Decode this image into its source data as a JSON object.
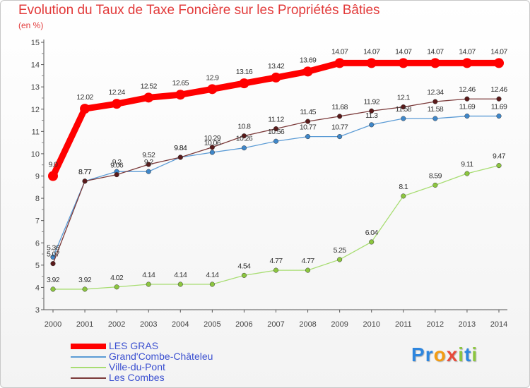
{
  "title": "Evolution du Taux de Taxe Foncière sur les Propriétés Bâties",
  "unit": "(en %)",
  "logo": {
    "letters": [
      "P",
      "r",
      "o",
      "x",
      "i",
      "t",
      "i"
    ],
    "colors": [
      "#2e86de",
      "#2e86de",
      "#f39c12",
      "#e74c3c",
      "#8cc63f",
      "#2e86de",
      "#8cc63f"
    ]
  },
  "chart_data": {
    "type": "line",
    "title": "Evolution du Taux de Taxe Foncière sur les Propriétés Bâties",
    "ylabel": "(en %)",
    "xlabel": "",
    "ylim": [
      3,
      15
    ],
    "yticks": [
      3,
      4,
      5,
      6,
      7,
      8,
      9,
      10,
      11,
      12,
      13,
      14,
      15
    ],
    "grid": false,
    "legend": "bottom-left",
    "x": [
      2000,
      2001,
      2002,
      2003,
      2004,
      2005,
      2006,
      2007,
      2008,
      2009,
      2010,
      2011,
      2012,
      2013,
      2014
    ],
    "series": [
      {
        "name": "LES GRAS",
        "color": "#ff0000",
        "emphasis": true,
        "values": [
          9.0,
          12.02,
          12.24,
          12.52,
          12.65,
          12.9,
          13.16,
          13.42,
          13.69,
          14.07,
          14.07,
          14.07,
          14.07,
          14.07,
          14.07
        ],
        "labels": [
          "9.0",
          "12.02",
          "12.24",
          "12.52",
          "12.65",
          "12.9",
          "13.16",
          "13.42",
          "13.69",
          "14.07",
          "14.07",
          "14.07",
          "14.07",
          "14.07",
          "14.07"
        ]
      },
      {
        "name": "Grand'Combe-Châteleu",
        "color": "#5b9bd5",
        "marker": "#3f87c9",
        "values": [
          5.36,
          8.77,
          9.2,
          9.2,
          9.84,
          10.06,
          10.26,
          10.56,
          10.77,
          10.77,
          11.3,
          11.58,
          11.58,
          11.69,
          11.69
        ],
        "labels": [
          "5.36",
          "8.77",
          "9.2",
          "9.2",
          "9.84",
          "10.06",
          "10.26",
          "10.56",
          "10.77",
          "10.77",
          "11.3",
          "11.58",
          "11.58",
          "11.69",
          "11.69"
        ]
      },
      {
        "name": "Ville-du-Pont",
        "color": "#a8dd72",
        "marker": "#8cc63f",
        "values": [
          3.92,
          3.92,
          4.02,
          4.14,
          4.14,
          4.14,
          4.54,
          4.77,
          4.77,
          5.25,
          6.04,
          8.1,
          8.59,
          9.11,
          9.47
        ],
        "labels": [
          "3.92",
          "3.92",
          "4.02",
          "4.14",
          "4.14",
          "4.14",
          "4.54",
          "4.77",
          "4.77",
          "5.25",
          "6.04",
          "8.1",
          "8.59",
          "9.11",
          "9.47"
        ]
      },
      {
        "name": "Les Combes",
        "color": "#7b3a3a",
        "marker": "#5a1a1a",
        "values": [
          5.07,
          8.77,
          9.06,
          9.52,
          9.84,
          10.29,
          10.8,
          11.12,
          11.45,
          11.68,
          11.92,
          12.1,
          12.34,
          12.46,
          12.46
        ],
        "labels": [
          "5.07",
          "8.77",
          "9.06",
          "9.52",
          "9.84",
          "10.29",
          "10.8",
          "11.12",
          "11.45",
          "11.68",
          "11.92",
          "12.1",
          "12.34",
          "12.46",
          "12.46"
        ]
      }
    ]
  }
}
